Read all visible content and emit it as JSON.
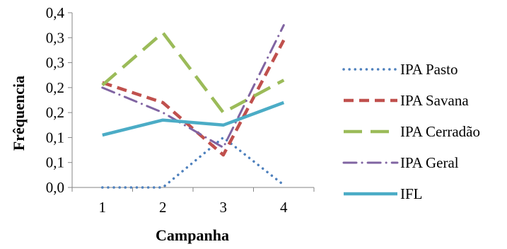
{
  "chart_data": {
    "type": "line",
    "title": "",
    "xlabel": "Campanha",
    "ylabel": "Frêquencia",
    "categories": [
      "1",
      "2",
      "3",
      "4"
    ],
    "y_tick_labels": [
      "0,0",
      "0,1",
      "0,1",
      "0,2",
      "0,2",
      "0,3",
      "0,3",
      "0,4"
    ],
    "ylim": [
      0,
      0.35
    ],
    "grid": false,
    "legend_position": "right",
    "series": [
      {
        "name": "IPA Pasto",
        "values": [
          0.0,
          0.0,
          0.1,
          0.005
        ],
        "color": "#4f81bd",
        "style": "dotted"
      },
      {
        "name": "IPA Savana",
        "values": [
          0.21,
          0.17,
          0.065,
          0.295
        ],
        "color": "#c0504d",
        "style": "dashed"
      },
      {
        "name": "IPA Cerradão",
        "values": [
          0.205,
          0.31,
          0.15,
          0.215
        ],
        "color": "#9bbb59",
        "style": "longdash"
      },
      {
        "name": "IPA Geral",
        "values": [
          0.2,
          0.15,
          0.08,
          0.325
        ],
        "color": "#8064a2",
        "style": "dashdot"
      },
      {
        "name": "IFL",
        "values": [
          0.105,
          0.135,
          0.125,
          0.17
        ],
        "color": "#4bacc6",
        "style": "solid"
      }
    ]
  }
}
